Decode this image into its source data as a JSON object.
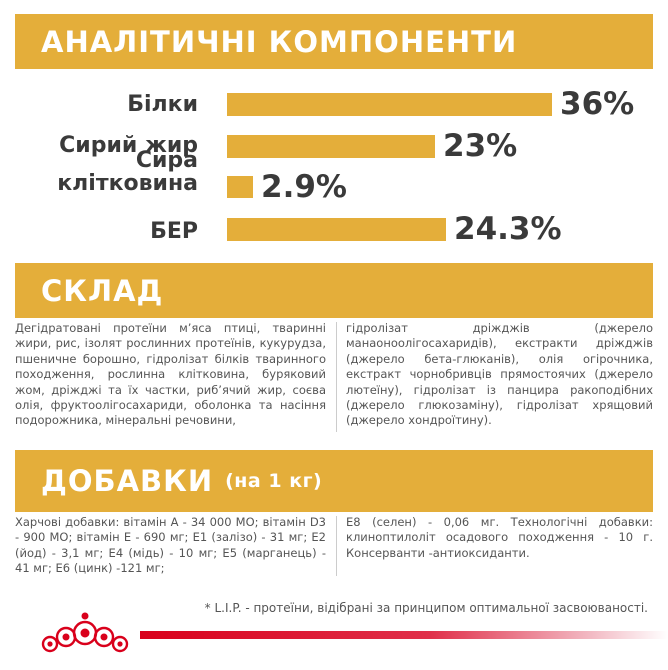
{
  "sections": {
    "analytic_title": "АНАЛІТИЧНІ КОМПОНЕНТИ",
    "composition_title": "СКЛАД",
    "additives_title": "ДОБАВКИ",
    "additives_subtitle": "(на 1 кг)"
  },
  "nutrients": [
    {
      "label_line1": "Білки",
      "label_line2": "",
      "value": "36%",
      "percent": 36
    },
    {
      "label_line1": "Сирий жир",
      "label_line2": "",
      "value": "23%",
      "percent": 23
    },
    {
      "label_line1": "Сира",
      "label_line2": "клітковина",
      "value": "2.9%",
      "percent": 2.9
    },
    {
      "label_line1": "БЕР",
      "label_line2": "",
      "value": "24.3%",
      "percent": 24.3
    }
  ],
  "composition": {
    "col1": "Дегідратовані протеїни м’яса птиці, тваринні жири, рис, ізолят рослинних протеїнів, кукурудза, пшеничне борошно, гідролізат білків тваринного походження, рослинна клітковина, буряковий жом, дріжджі та їх частки, риб’ячий жир, соєва олія, фруктоолігосахариди, оболонка та насіння подорожника, мінеральні речовини, ",
    "col2": "гідролізат дріжджів (джерело манаоноолігосахаридів), екстракти дріжджів (джерело бета-глюканів), олія огірочника, екстракт чорнобривців прямостоячих (джерело лютеїну), гідролізат із панцира ракоподібних (джерело глюкозаміну), гідролізат хрящовий (джерело хондроїтину)."
  },
  "additives": {
    "col1": "Харчові добавки: вітамін А - 34 000 МО; вітамін D3 - 900 МО; вітамін Е - 690 мг; Е1 (залізо) - 31 мг; Е2 (йод) - 3,1 мг; Е4 (мідь) - 10 мг; Е5 (марганець) - 41 мг; Е6 (цинк) -121 мг; ",
    "col2": "Е8 (селен) - 0,06 мг. Технологічні добавки: клиноптилоліт осадового походження - 10 г. Консерванти -антиоксиданти."
  },
  "footnote": "* L.I.P. - протеїни, відібрані за принципом оптимальної засвоюваності.",
  "colors": {
    "accent": "#e4ae3a",
    "brand_red": "#d9001b",
    "text": "#3a3a3a"
  },
  "logo": {
    "name": "ROYAL CANIN",
    "icon": "crown-icon"
  }
}
